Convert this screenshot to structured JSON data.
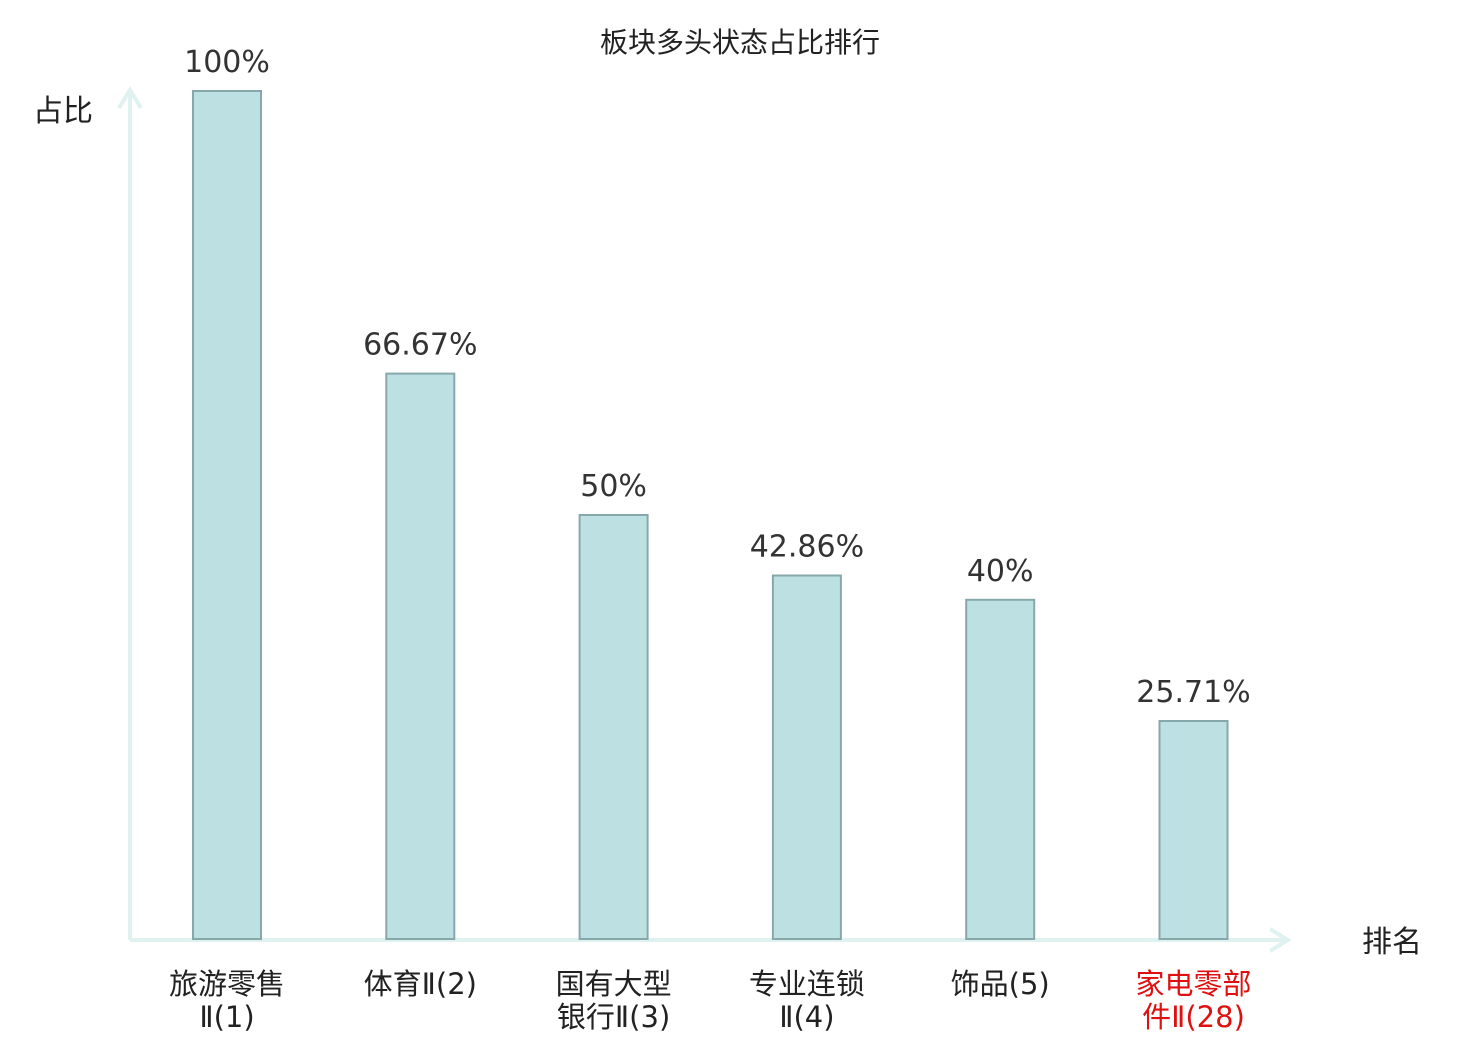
{
  "chart_data": {
    "type": "bar",
    "title": "板块多头状态占比排行",
    "ylabel": "占比",
    "xlabel": "排名",
    "ylim": [
      0,
      100
    ],
    "grid": false,
    "categories": [
      {
        "lines": [
          "旅游零售",
          "Ⅱ(1)"
        ],
        "highlight": false
      },
      {
        "lines": [
          "体育Ⅱ(2)"
        ],
        "highlight": false
      },
      {
        "lines": [
          "国有大型",
          "银行Ⅱ(3)"
        ],
        "highlight": false
      },
      {
        "lines": [
          "专业连锁",
          "Ⅱ(4)"
        ],
        "highlight": false
      },
      {
        "lines": [
          "饰品(5)"
        ],
        "highlight": false
      },
      {
        "lines": [
          "家电零部",
          "件Ⅱ(28)"
        ],
        "highlight": true
      }
    ],
    "values": [
      100,
      66.67,
      50,
      42.86,
      40,
      25.71
    ],
    "value_labels": [
      "100%",
      "66.67%",
      "50%",
      "42.86%",
      "40%",
      "25.71%"
    ]
  },
  "colors": {
    "bar_fill": "#bde0e3",
    "bar_stroke": "#87a8ab",
    "axis": "#dff2f0",
    "text": "#222222",
    "value_text": "#333333",
    "highlight": "#e01010"
  }
}
